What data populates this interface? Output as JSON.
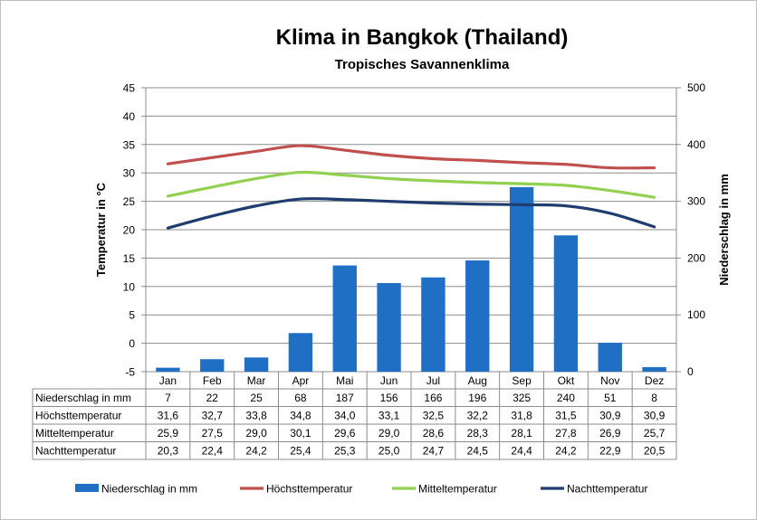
{
  "chart_data": {
    "type": "bar",
    "title": "Klima in Bangkok (Thailand)",
    "subtitle": "Tropisches Savannenklima",
    "ylabel_left": "Temperatur in °C",
    "ylabel_right": "Niederschlag in mm",
    "ylim_left": [
      -5,
      45
    ],
    "ylim_right": [
      0,
      500
    ],
    "yticks_left": [
      "45",
      "40",
      "35",
      "30",
      "25",
      "20",
      "15",
      "10",
      "5",
      "0",
      "-5"
    ],
    "yticks_right": [
      "500",
      "400",
      "300",
      "200",
      "100",
      "0"
    ],
    "categories": [
      "Jan",
      "Feb",
      "Mar",
      "Apr",
      "Mai",
      "Jun",
      "Jul",
      "Aug",
      "Sep",
      "Okt",
      "Nov",
      "Dez"
    ],
    "grid": true,
    "legend_position": "bottom",
    "series": [
      {
        "name": "Niederschlag in mm",
        "kind": "bar",
        "axis": "right",
        "color": "#1f6fc5",
        "values": [
          7,
          22,
          25,
          68,
          187,
          156,
          166,
          196,
          325,
          240,
          51,
          8
        ],
        "labels": [
          "7",
          "22",
          "25",
          "68",
          "187",
          "156",
          "166",
          "196",
          "325",
          "240",
          "51",
          "8"
        ]
      },
      {
        "name": "Höchsttemperatur",
        "kind": "line",
        "axis": "left",
        "color": "#c0504d",
        "values": [
          31.6,
          32.7,
          33.8,
          34.8,
          34.0,
          33.1,
          32.5,
          32.2,
          31.8,
          31.5,
          30.9,
          30.9
        ],
        "labels": [
          "31,6",
          "32,7",
          "33,8",
          "34,8",
          "34,0",
          "33,1",
          "32,5",
          "32,2",
          "31,8",
          "31,5",
          "30,9",
          "30,9"
        ]
      },
      {
        "name": "Mitteltemperatur",
        "kind": "line",
        "axis": "left",
        "color": "#92d050",
        "values": [
          25.9,
          27.5,
          29.0,
          30.1,
          29.6,
          29.0,
          28.6,
          28.3,
          28.1,
          27.8,
          26.9,
          25.7
        ],
        "labels": [
          "25,9",
          "27,5",
          "29,0",
          "30,1",
          "29,6",
          "29,0",
          "28,6",
          "28,3",
          "28,1",
          "27,8",
          "26,9",
          "25,7"
        ]
      },
      {
        "name": "Nachttemperatur",
        "kind": "line",
        "axis": "left",
        "color": "#1f3d6e",
        "values": [
          20.3,
          22.4,
          24.2,
          25.4,
          25.3,
          25.0,
          24.7,
          24.5,
          24.4,
          24.2,
          22.9,
          20.5
        ],
        "labels": [
          "20,3",
          "22,4",
          "24,2",
          "25,4",
          "25,3",
          "25,0",
          "24,7",
          "24,5",
          "24,4",
          "24,2",
          "22,9",
          "20,5"
        ]
      }
    ]
  }
}
